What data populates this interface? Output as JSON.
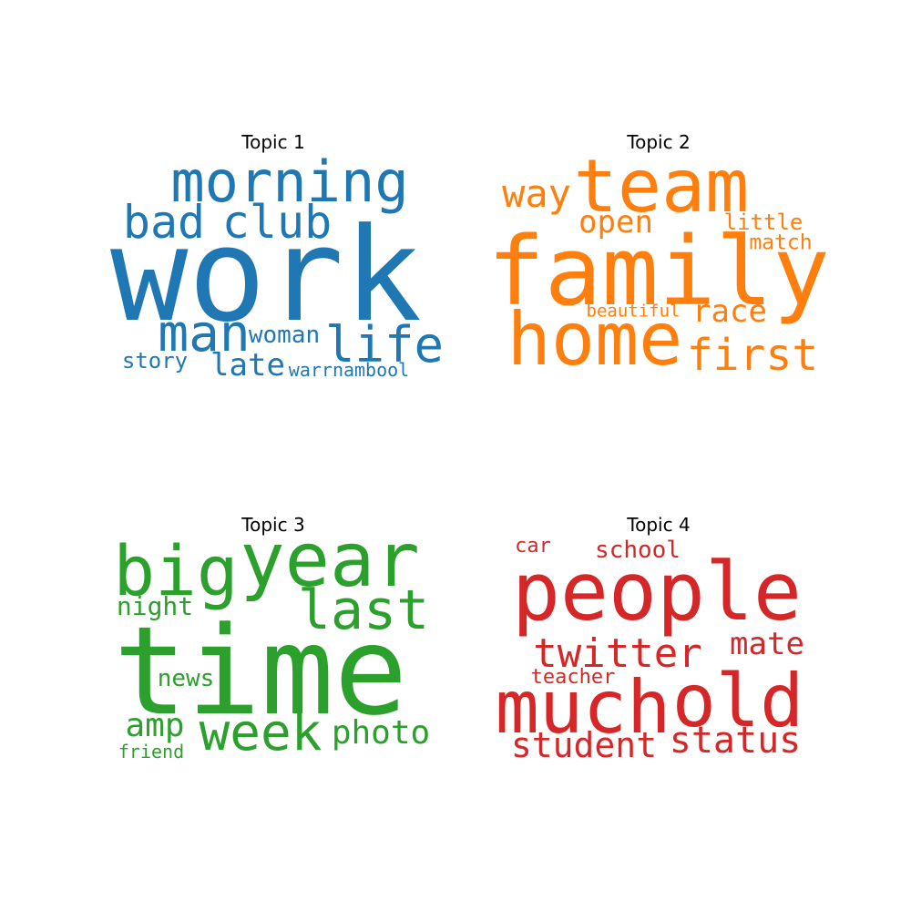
{
  "topics": [
    {
      "title": "Topic 1",
      "color": "#1f77b4",
      "words": [
        "morning",
        "bad",
        "club",
        "work",
        "man",
        "woman",
        "life",
        "story",
        "late",
        "warrnambool"
      ]
    },
    {
      "title": "Topic 2",
      "color": "#ff7f0e",
      "words": [
        "way",
        "team",
        "open",
        "little",
        "match",
        "family",
        "beautiful",
        "race",
        "home",
        "first"
      ]
    },
    {
      "title": "Topic 3",
      "color": "#2ca02c",
      "words": [
        "big",
        "year",
        "night",
        "last",
        "time",
        "news",
        "amp",
        "week",
        "photo",
        "friend"
      ]
    },
    {
      "title": "Topic 4",
      "color": "#d62728",
      "words": [
        "car",
        "school",
        "people",
        "mate",
        "twitter",
        "teacher",
        "much",
        "old",
        "student",
        "status"
      ]
    }
  ]
}
